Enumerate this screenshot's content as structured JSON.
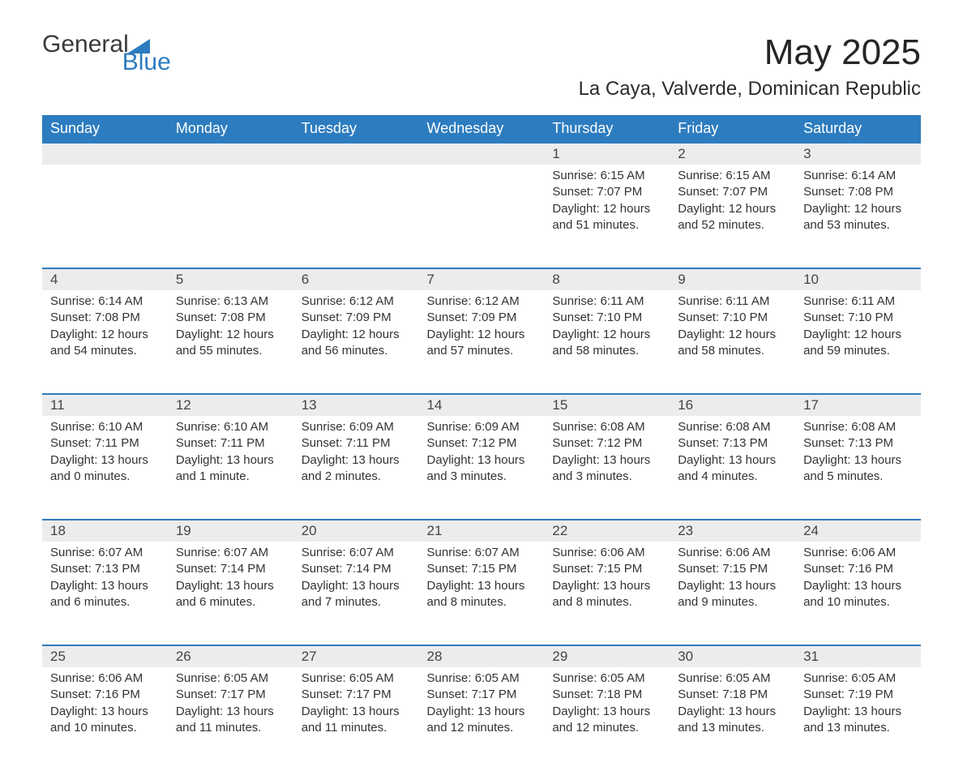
{
  "logo": {
    "word1": "General",
    "word2": "Blue"
  },
  "title": "May 2025",
  "subtitle": "La Caya, Valverde, Dominican Republic",
  "colors": {
    "header_bg": "#2d7cbf",
    "header_text": "#ffffff",
    "row_divider": "#2d7cbf",
    "daynum_bg": "#ececec",
    "body_text": "#333333",
    "page_bg": "#ffffff",
    "logo_accent": "#2d7cbf"
  },
  "fonts": {
    "family": "Arial",
    "title_size_pt": 33,
    "subtitle_size_pt": 18,
    "header_size_pt": 13,
    "daynum_size_pt": 13,
    "body_size_pt": 11
  },
  "layout": {
    "type": "calendar",
    "columns": 7,
    "rows": 5,
    "first_day_index": 4
  },
  "day_headers": [
    "Sunday",
    "Monday",
    "Tuesday",
    "Wednesday",
    "Thursday",
    "Friday",
    "Saturday"
  ],
  "days": [
    {
      "n": "1",
      "sunrise": "6:15 AM",
      "sunset": "7:07 PM",
      "daylight": "12 hours and 51 minutes."
    },
    {
      "n": "2",
      "sunrise": "6:15 AM",
      "sunset": "7:07 PM",
      "daylight": "12 hours and 52 minutes."
    },
    {
      "n": "3",
      "sunrise": "6:14 AM",
      "sunset": "7:08 PM",
      "daylight": "12 hours and 53 minutes."
    },
    {
      "n": "4",
      "sunrise": "6:14 AM",
      "sunset": "7:08 PM",
      "daylight": "12 hours and 54 minutes."
    },
    {
      "n": "5",
      "sunrise": "6:13 AM",
      "sunset": "7:08 PM",
      "daylight": "12 hours and 55 minutes."
    },
    {
      "n": "6",
      "sunrise": "6:12 AM",
      "sunset": "7:09 PM",
      "daylight": "12 hours and 56 minutes."
    },
    {
      "n": "7",
      "sunrise": "6:12 AM",
      "sunset": "7:09 PM",
      "daylight": "12 hours and 57 minutes."
    },
    {
      "n": "8",
      "sunrise": "6:11 AM",
      "sunset": "7:10 PM",
      "daylight": "12 hours and 58 minutes."
    },
    {
      "n": "9",
      "sunrise": "6:11 AM",
      "sunset": "7:10 PM",
      "daylight": "12 hours and 58 minutes."
    },
    {
      "n": "10",
      "sunrise": "6:11 AM",
      "sunset": "7:10 PM",
      "daylight": "12 hours and 59 minutes."
    },
    {
      "n": "11",
      "sunrise": "6:10 AM",
      "sunset": "7:11 PM",
      "daylight": "13 hours and 0 minutes."
    },
    {
      "n": "12",
      "sunrise": "6:10 AM",
      "sunset": "7:11 PM",
      "daylight": "13 hours and 1 minute."
    },
    {
      "n": "13",
      "sunrise": "6:09 AM",
      "sunset": "7:11 PM",
      "daylight": "13 hours and 2 minutes."
    },
    {
      "n": "14",
      "sunrise": "6:09 AM",
      "sunset": "7:12 PM",
      "daylight": "13 hours and 3 minutes."
    },
    {
      "n": "15",
      "sunrise": "6:08 AM",
      "sunset": "7:12 PM",
      "daylight": "13 hours and 3 minutes."
    },
    {
      "n": "16",
      "sunrise": "6:08 AM",
      "sunset": "7:13 PM",
      "daylight": "13 hours and 4 minutes."
    },
    {
      "n": "17",
      "sunrise": "6:08 AM",
      "sunset": "7:13 PM",
      "daylight": "13 hours and 5 minutes."
    },
    {
      "n": "18",
      "sunrise": "6:07 AM",
      "sunset": "7:13 PM",
      "daylight": "13 hours and 6 minutes."
    },
    {
      "n": "19",
      "sunrise": "6:07 AM",
      "sunset": "7:14 PM",
      "daylight": "13 hours and 6 minutes."
    },
    {
      "n": "20",
      "sunrise": "6:07 AM",
      "sunset": "7:14 PM",
      "daylight": "13 hours and 7 minutes."
    },
    {
      "n": "21",
      "sunrise": "6:07 AM",
      "sunset": "7:15 PM",
      "daylight": "13 hours and 8 minutes."
    },
    {
      "n": "22",
      "sunrise": "6:06 AM",
      "sunset": "7:15 PM",
      "daylight": "13 hours and 8 minutes."
    },
    {
      "n": "23",
      "sunrise": "6:06 AM",
      "sunset": "7:15 PM",
      "daylight": "13 hours and 9 minutes."
    },
    {
      "n": "24",
      "sunrise": "6:06 AM",
      "sunset": "7:16 PM",
      "daylight": "13 hours and 10 minutes."
    },
    {
      "n": "25",
      "sunrise": "6:06 AM",
      "sunset": "7:16 PM",
      "daylight": "13 hours and 10 minutes."
    },
    {
      "n": "26",
      "sunrise": "6:05 AM",
      "sunset": "7:17 PM",
      "daylight": "13 hours and 11 minutes."
    },
    {
      "n": "27",
      "sunrise": "6:05 AM",
      "sunset": "7:17 PM",
      "daylight": "13 hours and 11 minutes."
    },
    {
      "n": "28",
      "sunrise": "6:05 AM",
      "sunset": "7:17 PM",
      "daylight": "13 hours and 12 minutes."
    },
    {
      "n": "29",
      "sunrise": "6:05 AM",
      "sunset": "7:18 PM",
      "daylight": "13 hours and 12 minutes."
    },
    {
      "n": "30",
      "sunrise": "6:05 AM",
      "sunset": "7:18 PM",
      "daylight": "13 hours and 13 minutes."
    },
    {
      "n": "31",
      "sunrise": "6:05 AM",
      "sunset": "7:19 PM",
      "daylight": "13 hours and 13 minutes."
    }
  ],
  "labels": {
    "sunrise": "Sunrise:",
    "sunset": "Sunset:",
    "daylight": "Daylight:"
  }
}
